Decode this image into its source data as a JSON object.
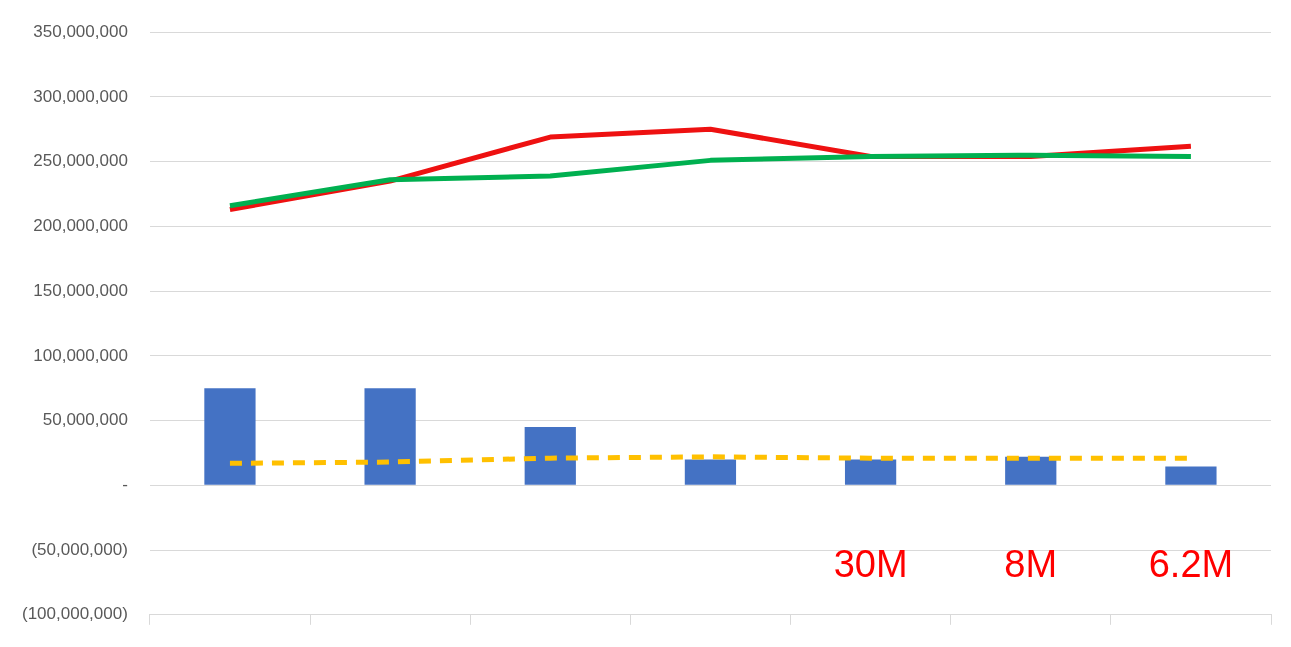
{
  "chart_data": {
    "type": "bar",
    "categories": [
      null,
      null,
      null,
      null,
      null,
      null,
      null
    ],
    "series": [
      {
        "color": "#4472c4",
        "values": [
          75000000,
          75000000,
          45000000,
          20000000,
          20000000,
          22000000,
          14500000
        ]
      },
      {
        "type": "line",
        "color": "#ffc000",
        "line_style": "dashed",
        "values": [
          17000000,
          18000000,
          21000000,
          22000000,
          21000000,
          21000000,
          21000000
        ]
      },
      {
        "type": "line",
        "color": "#00b050",
        "values": [
          216000000,
          236000000,
          239000000,
          251000000,
          254000000,
          255000000,
          254000000
        ]
      },
      {
        "type": "line",
        "color": "#ee1111",
        "values": [
          213000000,
          235000000,
          269000000,
          275000000,
          254000000,
          254000000,
          262000000
        ]
      }
    ],
    "ylim": [
      -100000000,
      350000000
    ],
    "yticks": [
      {
        "value": -100000000,
        "label": "(100,000,000)"
      },
      {
        "value": -50000000,
        "label": "(50,000,000)"
      },
      {
        "value": 0,
        "label": "-"
      },
      {
        "value": 50000000,
        "label": "50,000,000"
      },
      {
        "value": 100000000,
        "label": "100,000,000"
      },
      {
        "value": 150000000,
        "label": "150,000,000"
      },
      {
        "value": 200000000,
        "label": "200,000,000"
      },
      {
        "value": 250000000,
        "label": "250,000,000"
      },
      {
        "value": 300000000,
        "label": "300,000,000"
      },
      {
        "value": 350000000,
        "label": "350,000,000"
      }
    ],
    "annotations": [
      "30M",
      "8M",
      "6.2M"
    ],
    "grid": "y",
    "legend": false,
    "marker": "none",
    "tick_labels": "y"
  }
}
